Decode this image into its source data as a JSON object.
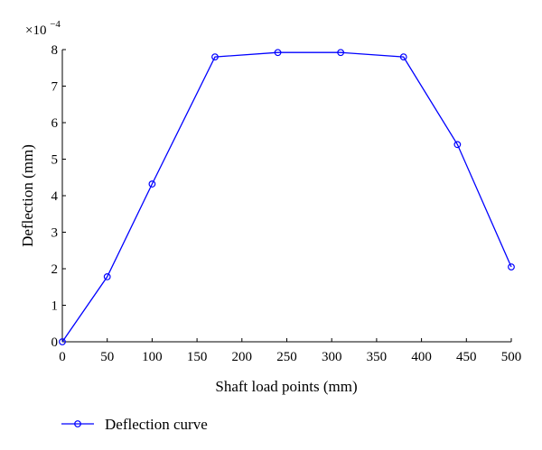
{
  "chart_data": {
    "type": "line",
    "xlabel": "Shaft load points (mm)",
    "ylabel": "Deflection (mm)",
    "y_scale_label": {
      "base": "×10",
      "exponent": "−4"
    },
    "xlim": [
      0,
      500
    ],
    "ylim": [
      0,
      8
    ],
    "xticks": [
      0,
      50,
      100,
      150,
      200,
      250,
      300,
      350,
      400,
      450,
      500
    ],
    "yticks": [
      0,
      1,
      2,
      3,
      4,
      5,
      6,
      7,
      8
    ],
    "grid": false,
    "legend_position": "bottom-left",
    "series": [
      {
        "name": "Deflection curve",
        "color": "#0000ff",
        "marker": "circle",
        "x": [
          0,
          50,
          100,
          170,
          240,
          310,
          380,
          440,
          500
        ],
        "y": [
          0,
          1.78,
          4.32,
          7.8,
          7.92,
          7.92,
          7.8,
          5.4,
          2.05
        ]
      }
    ]
  }
}
